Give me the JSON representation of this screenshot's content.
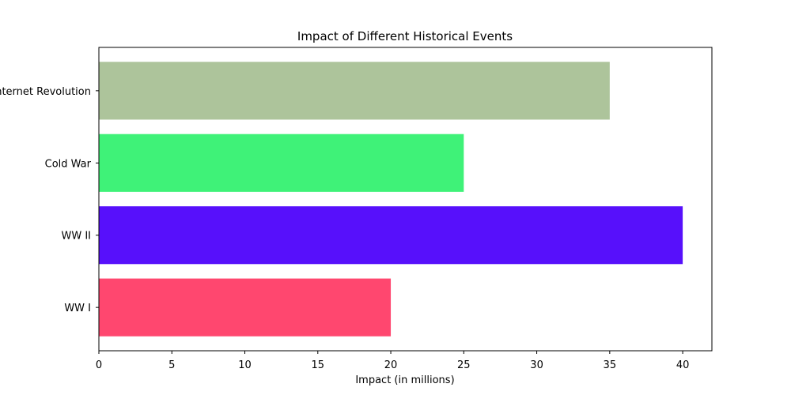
{
  "chart_data": {
    "type": "bar",
    "orientation": "horizontal",
    "title": "Impact of Different Historical Events",
    "xlabel": "Impact (in millions)",
    "ylabel": "",
    "categories": [
      "WW I",
      "WW II",
      "Cold War",
      "Internet Revolution"
    ],
    "values": [
      20,
      40,
      25,
      35
    ],
    "colors": [
      "#ff476f",
      "#5710fb",
      "#3ff278",
      "#adc49b"
    ],
    "xlim": [
      0,
      42
    ],
    "xticks": [
      0,
      5,
      10,
      15,
      20,
      25,
      30,
      35,
      40
    ],
    "grid": false,
    "legend": "none"
  }
}
